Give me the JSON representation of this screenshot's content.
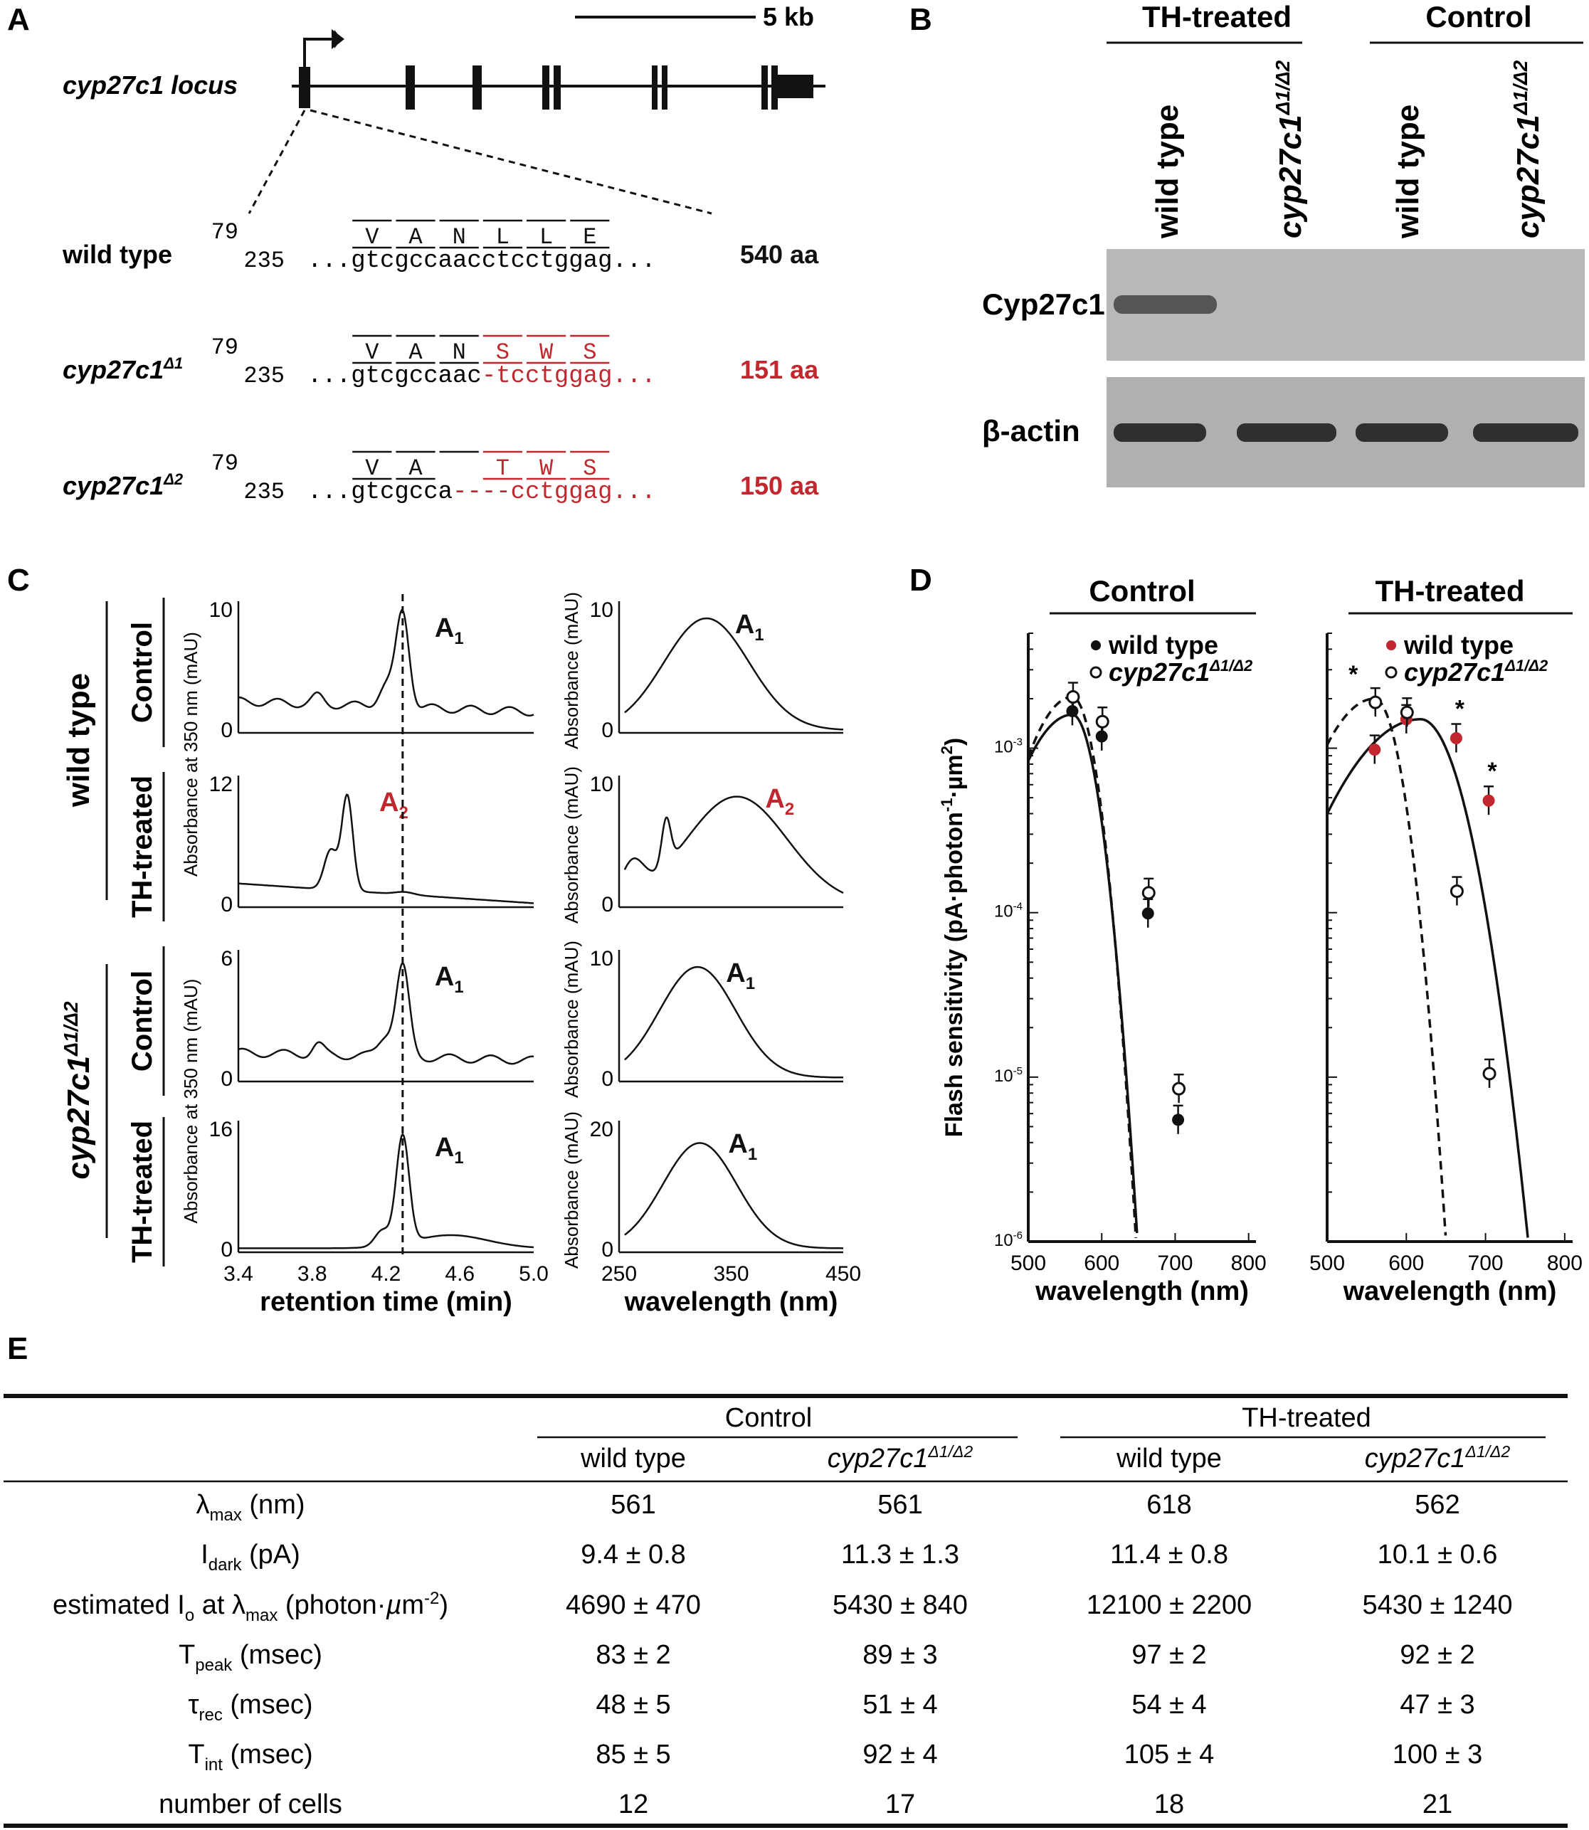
{
  "panelA": {
    "letter": "A",
    "scale": "5 kb",
    "locus": "cyp27c1 locus",
    "rows": [
      {
        "name": "wild type",
        "aaNum": "79",
        "ntNum": "235",
        "aas": [
          "V",
          "A",
          "N",
          "L",
          "L",
          "E"
        ],
        "aaStart": 0,
        "seq": "...gtcgccaacctcctggag...",
        "length": "540 aa"
      },
      {
        "name": "cyp27c1",
        "sup": "Δ1",
        "aaNum": "79",
        "ntNum": "235",
        "aas": [
          "V",
          "A",
          "N",
          "S",
          "W",
          "S"
        ],
        "redFrom": 3,
        "seqBlack": "...gtcgccaac",
        "seqRed": "-tcctggag...",
        "length": "151 aa"
      },
      {
        "name": "cyp27c1",
        "sup": "Δ2",
        "aaNum": "79",
        "ntNum": "235",
        "aas": [
          "V",
          "A",
          "",
          "T",
          "W",
          "S"
        ],
        "redFrom": 3,
        "seqBlack": "...gtcgcca",
        "seqRed": "----cctggag...",
        "length": "150 aa"
      }
    ]
  },
  "panelB": {
    "letter": "B",
    "groups": [
      "TH-treated",
      "Control"
    ],
    "lanes": [
      {
        "label": "wild type"
      },
      {
        "label": "cyp27c1",
        "sup": "Δ1/Δ2"
      },
      {
        "label": "wild type"
      },
      {
        "label": "cyp27c1",
        "sup": "Δ1/Δ2"
      }
    ],
    "blots": [
      "Cyp27c1",
      "β-actin"
    ]
  },
  "panelC": {
    "letter": "C",
    "genotypes": [
      {
        "name": "wild type",
        "sup": ""
      },
      {
        "name": "cyp27c1",
        "sup": "Δ1/Δ2"
      }
    ],
    "conditions": [
      "Control",
      "TH-treated",
      "Control",
      "TH-treated"
    ],
    "hplc_ylabel": "Absorbance at 350 nm (mAU)",
    "spec_ylabel": "Absorbance (mAU)",
    "hplc_xlabel": "retention time (min)",
    "spec_xlabel": "wavelength (nm)",
    "hplc_xticks": [
      "3.4",
      "3.8",
      "4.2",
      "4.6",
      "5.0"
    ],
    "spec_xticks": [
      "250",
      "350",
      "450"
    ],
    "rows": [
      {
        "hplc_ymax": "10",
        "spec_ymax": "10",
        "peak": "A",
        "peakSub": "1",
        "red": false
      },
      {
        "hplc_ymax": "12",
        "spec_ymax": "10",
        "peak": "A",
        "peakSub": "2",
        "red": true
      },
      {
        "hplc_ymax": "6",
        "spec_ymax": "10",
        "peak": "A",
        "peakSub": "1",
        "red": false
      },
      {
        "hplc_ymax": "16",
        "spec_ymax": "20",
        "peak": "A",
        "peakSub": "1",
        "red": false
      }
    ],
    "zero": "0"
  },
  "chart_data": {
    "type": "scatter",
    "title": "",
    "panels": [
      {
        "title": "Control",
        "xlabel": "wavelength (nm)",
        "ylabel": "Flash sensitivity (pA·photon-1·µm2)",
        "xlim": [
          500,
          810
        ],
        "ylim": [
          1e-06,
          0.005
        ],
        "yscale": "log",
        "xticks": [
          "500",
          "600",
          "700",
          "800"
        ],
        "yticks": [
          "10-3",
          "10-4",
          "10-5",
          "10-6"
        ],
        "series": [
          {
            "name": "wild type",
            "marker": "filled",
            "color": "#111111",
            "points": [
              [
                560,
                0.00168
              ],
              [
                600,
                0.00118
              ],
              [
                663,
                9.9e-05
              ],
              [
                704,
                5.5e-06
              ]
            ]
          },
          {
            "name": "cyp27c1Δ1/Δ2",
            "marker": "open",
            "color": "#111111",
            "points": [
              [
                560,
                0.00205
              ],
              [
                600,
                0.00145
              ],
              [
                663,
                0.000132
              ],
              [
                704,
                8.5e-06
              ]
            ]
          }
        ]
      },
      {
        "title": "TH-treated",
        "xlabel": "wavelength (nm)",
        "ylabel": "",
        "xlim": [
          500,
          810
        ],
        "ylim": [
          1e-06,
          0.005
        ],
        "yscale": "log",
        "xticks": [
          "500",
          "600",
          "700",
          "800"
        ],
        "series": [
          {
            "name": "wild type",
            "marker": "filled",
            "color": "#c1272d",
            "points": [
              [
                560,
                0.00098
              ],
              [
                600,
                0.0015
              ],
              [
                663,
                0.00115
              ],
              [
                704,
                0.00048
              ]
            ]
          },
          {
            "name": "cyp27c1Δ1/Δ2",
            "marker": "open",
            "color": "#111111",
            "points": [
              [
                560,
                0.0019
              ],
              [
                600,
                0.00165
              ],
              [
                663,
                0.000135
              ],
              [
                704,
                1.05e-05
              ]
            ]
          }
        ],
        "annotations": [
          "*",
          "*",
          "*",
          "*"
        ]
      }
    ]
  },
  "panelD": {
    "letter": "D",
    "legend": [
      {
        "name": "wild type",
        "sup": ""
      },
      {
        "name": "cyp27c1",
        "sup": "Δ1/Δ2"
      }
    ]
  },
  "panelE": {
    "letter": "E",
    "groups": [
      "Control",
      "TH-treated"
    ],
    "columns": [
      {
        "name": "wild type",
        "sup": ""
      },
      {
        "name": "cyp27c1",
        "sup": "Δ1/Δ2"
      },
      {
        "name": "wild type",
        "sup": ""
      },
      {
        "name": "cyp27c1",
        "sup": "Δ1/Δ2"
      }
    ],
    "rows": [
      {
        "label": [
          [
            "λ",
            ""
          ],
          [
            "max",
            "sub"
          ],
          [
            " (nm)",
            ""
          ]
        ],
        "values": [
          "561",
          "561",
          "618",
          "562"
        ]
      },
      {
        "label": [
          [
            "I",
            ""
          ],
          [
            "dark",
            "sub"
          ],
          [
            " (pA)",
            ""
          ]
        ],
        "values": [
          "9.4 ± 0.8",
          "11.3 ± 1.3",
          "11.4 ± 0.8",
          "10.1 ± 0.6"
        ]
      },
      {
        "label": [
          [
            "estimated I",
            ""
          ],
          [
            "o",
            "sub"
          ],
          [
            " at λ",
            ""
          ],
          [
            "max",
            "sub"
          ],
          [
            " (photon·",
            ""
          ],
          [
            "µ",
            "it"
          ],
          [
            "m",
            ""
          ],
          [
            "-2",
            "sup"
          ],
          [
            ")",
            ""
          ]
        ],
        "values": [
          "4690 ± 470",
          "5430 ± 840",
          "12100 ± 2200",
          "5430 ± 1240"
        ]
      },
      {
        "label": [
          [
            "T",
            ""
          ],
          [
            "peak",
            "sub"
          ],
          [
            " (msec)",
            ""
          ]
        ],
        "values": [
          "83 ± 2",
          "89 ± 3",
          "97 ± 2",
          "92 ± 2"
        ]
      },
      {
        "label": [
          [
            "τ",
            ""
          ],
          [
            "rec",
            "sub"
          ],
          [
            " (msec)",
            ""
          ]
        ],
        "values": [
          "48 ± 5",
          "51 ± 4",
          "54 ± 4",
          "47 ± 3"
        ]
      },
      {
        "label": [
          [
            "T",
            ""
          ],
          [
            "int",
            "sub"
          ],
          [
            " (msec)",
            ""
          ]
        ],
        "values": [
          "85 ± 5",
          "92 ± 4",
          "105 ± 4",
          "100 ± 3"
        ]
      },
      {
        "label": [
          [
            "number of cells",
            ""
          ]
        ],
        "values": [
          "12",
          "17",
          "18",
          "21"
        ]
      }
    ]
  }
}
